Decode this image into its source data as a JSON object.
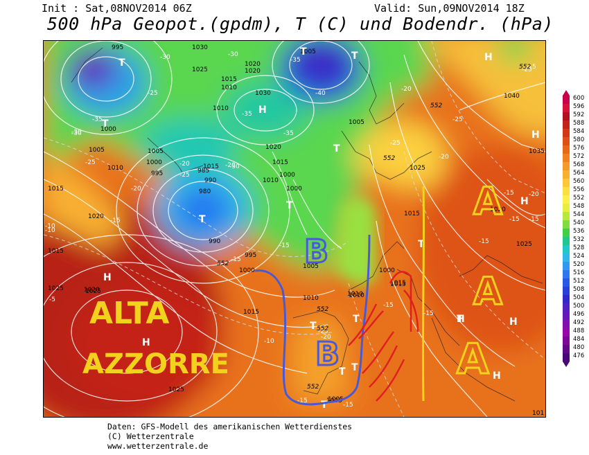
{
  "header": {
    "init": "Init : Sat,08NOV2014 06Z",
    "valid": "Valid: Sun,09NOV2014 18Z",
    "title": "500 hPa Geopot.(gpdm), T (C) und Bodendr. (hPa)"
  },
  "footer": {
    "line1": "Daten: GFS-Modell des amerikanischen Wetterdienstes",
    "line2": "(C) Wetterzentrale",
    "line3": "www.wetterzentrale.de"
  },
  "legend": {
    "values": [
      "600",
      "596",
      "592",
      "588",
      "584",
      "580",
      "576",
      "572",
      "568",
      "564",
      "560",
      "556",
      "552",
      "548",
      "544",
      "540",
      "536",
      "532",
      "528",
      "524",
      "520",
      "516",
      "512",
      "508",
      "504",
      "500",
      "496",
      "492",
      "488",
      "484",
      "480",
      "476"
    ],
    "colors": [
      "#c8004a",
      "#d8103a",
      "#b01020",
      "#c42218",
      "#d23818",
      "#de5018",
      "#e86818",
      "#f08020",
      "#f59a28",
      "#f8b030",
      "#fbc838",
      "#fde040",
      "#fef048",
      "#e6f03c",
      "#b8e838",
      "#80dc40",
      "#40d048",
      "#20c890",
      "#20c8c8",
      "#30b8e8",
      "#3098f0",
      "#3078f0",
      "#2858e8",
      "#2840d8",
      "#3028c8",
      "#5020c0",
      "#6818b8",
      "#8010b0",
      "#9808a8",
      "#7c0898",
      "#600888",
      "#480878"
    ]
  },
  "map_labels": {
    "pressure": [
      "995",
      "1030",
      "1005",
      "1020",
      "1025",
      "1020",
      "1015",
      "1010",
      "1030",
      "1000",
      "1005",
      "1005",
      "1010",
      "1000",
      "995",
      "1010",
      "1015",
      "985",
      "990",
      "980",
      "1015",
      "1020",
      "1000",
      "990",
      "995",
      "1000",
      "1020",
      "1015",
      "1010",
      "1005",
      "1000",
      "1010",
      "1015",
      "1010",
      "1005",
      "1015",
      "1025",
      "1035",
      "1040",
      "1020",
      "1025",
      "1025",
      "1020",
      "1015",
      "1015",
      "1005",
      "1000",
      "1025",
      "1015",
      "1025",
      "1010",
      "1005",
      "101"
    ],
    "temperature": [
      "-30",
      "-30",
      "-35",
      "-35",
      "-25",
      "-20",
      "-30",
      "-35",
      "-25",
      "-40",
      "-35",
      "-25",
      "-20",
      "-30",
      "-25",
      "-20",
      "-25",
      "-20",
      "-25",
      "-15",
      "-20",
      "-15",
      "-15",
      "-15",
      "-10",
      "-5",
      "-10",
      "-15",
      "-15",
      "-15",
      "-15",
      "-15",
      "-15",
      "-20",
      "-25",
      "-15",
      "-20",
      "-10",
      "-30",
      "-15"
    ],
    "geopotential": [
      "552",
      "552",
      "552",
      "552",
      "552",
      "552",
      "552"
    ],
    "centers": [
      "T",
      "T",
      "H",
      "T",
      "T",
      "T",
      "T",
      "H",
      "H",
      "H",
      "T",
      "T",
      "T",
      "T",
      "H",
      "H",
      "H",
      "T",
      "T",
      "T",
      "H",
      "H",
      "T"
    ]
  },
  "annotations": {
    "alta1": "ALTA",
    "alta2": "AZZORRE",
    "b1": "B",
    "b2": "B",
    "a1": "A",
    "a2": "A",
    "a3": "A"
  }
}
